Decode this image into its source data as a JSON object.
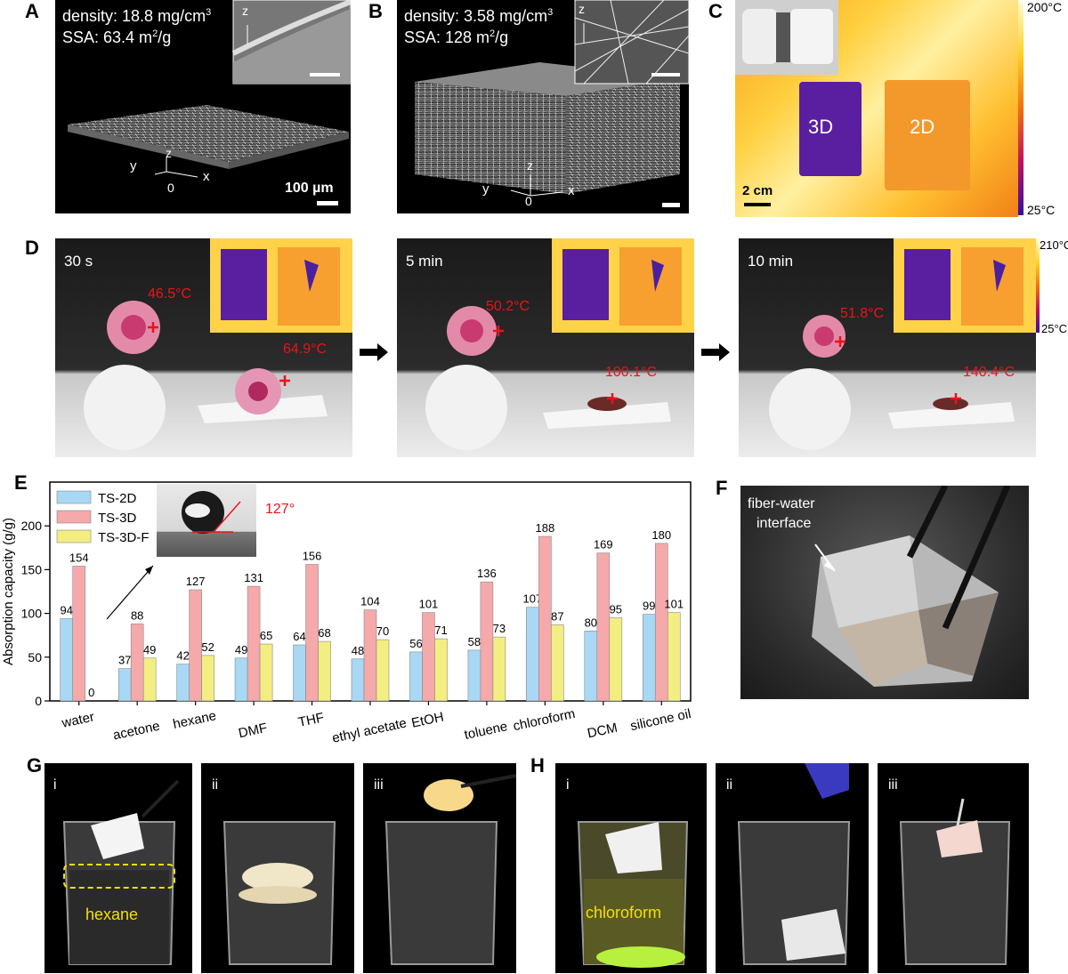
{
  "panels": {
    "A": {
      "label": "A",
      "density": "density: 18.8 mg/cm",
      "density_sup": "3",
      "ssa": "SSA: 63.4 m",
      "ssa_sup": "2",
      "ssa_unit": "/g",
      "scale": "100 µm",
      "axis_z": "z",
      "axis_y": "y",
      "axis_x": "x",
      "axis_0": "0",
      "inset_axis": "z"
    },
    "B": {
      "label": "B",
      "density": "density: 3.58 mg/cm",
      "density_sup": "3",
      "ssa": "SSA: 128 m",
      "ssa_sup": "2",
      "ssa_unit": "/g",
      "axis_z": "z",
      "axis_y": "y",
      "axis_x": "x",
      "axis_0": "0",
      "inset_axis": "z"
    },
    "C": {
      "label": "C",
      "left": "3D",
      "right": "2D",
      "scale": "2 cm",
      "cmax": "200°C",
      "cmin": "25°C"
    },
    "D": {
      "label": "D",
      "frames": [
        {
          "time": "30 s",
          "t1": "46.5°C",
          "t2": "64.9°C"
        },
        {
          "time": "5 min",
          "t1": "50.2°C",
          "t2": "100.1°C"
        },
        {
          "time": "10 min",
          "t1": "51.8°C",
          "t2": "140.4°C"
        }
      ],
      "cmax": "210°C",
      "cmin": "25°C"
    },
    "E": {
      "label": "E",
      "inset_angle": "127°"
    },
    "F": {
      "label": "F",
      "annot_line1": "fiber-water",
      "annot_line2": "interface"
    },
    "G": {
      "label": "G",
      "sub": [
        "i",
        "ii",
        "iii"
      ],
      "annot": "hexane"
    },
    "H": {
      "label": "H",
      "sub": [
        "i",
        "ii",
        "iii"
      ],
      "annot": "chloroform"
    }
  },
  "chart_data": {
    "type": "bar",
    "ylabel": "Absorption capacity (g/g)",
    "ylim": [
      0,
      250
    ],
    "yticks": [
      0,
      50,
      100,
      150,
      200
    ],
    "categories": [
      "water",
      "acetone",
      "hexane",
      "DMF",
      "THF",
      "ethyl acetate",
      "EtOH",
      "toluene",
      "chloroform",
      "DCM",
      "silicone oil"
    ],
    "series": [
      {
        "name": "TS-2D",
        "color": "#a8d8f4",
        "values": [
          94,
          37,
          42,
          49,
          64,
          48,
          56,
          58,
          107,
          80,
          99
        ]
      },
      {
        "name": "TS-3D",
        "color": "#f5a9ab",
        "values": [
          154,
          88,
          127,
          131,
          156,
          104,
          101,
          136,
          188,
          169,
          180
        ]
      },
      {
        "name": "TS-3D-F",
        "color": "#f2ee82",
        "values": [
          0,
          49,
          52,
          65,
          68,
          70,
          71,
          73,
          87,
          95,
          101
        ]
      }
    ]
  }
}
